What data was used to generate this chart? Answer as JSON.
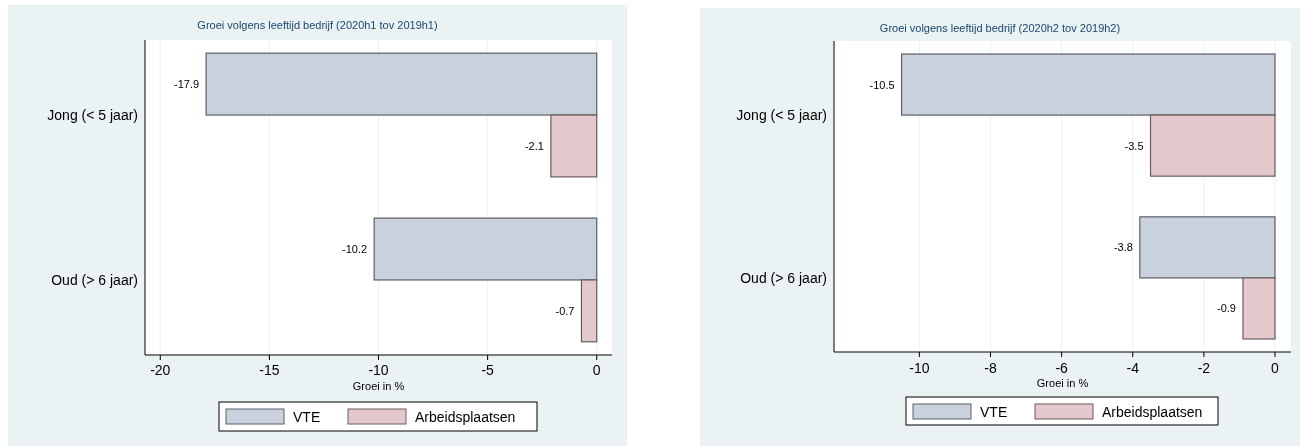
{
  "chart_data": [
    {
      "type": "bar",
      "orientation": "horizontal",
      "title": "Groei volgens leeftijd bedrijf (2020h1 tov 2019h1)",
      "xlabel": "Groei in %",
      "categories": [
        "Jong (< 5 jaar)",
        "Oud (> 6 jaar)"
      ],
      "series": [
        {
          "name": "VTE",
          "color": "#c8d1dc",
          "values": [
            -17.9,
            -10.2
          ]
        },
        {
          "name": "Arbeidsplaatsen",
          "color": "#e3c9cc",
          "values": [
            -2.1,
            -0.7
          ]
        }
      ],
      "xlim": [
        -20.7,
        0.7
      ],
      "xticks": [
        -20,
        -15,
        -10,
        -5,
        0
      ],
      "grid": "x",
      "legend": "bottom",
      "data_labels": true
    },
    {
      "type": "bar",
      "orientation": "horizontal",
      "title": "Groei volgens leeftijd bedrijf (2020h2 tov 2019h2)",
      "xlabel": "Groei in %",
      "categories": [
        "Jong (< 5 jaar)",
        "Oud (> 6 jaar)"
      ],
      "series": [
        {
          "name": "VTE",
          "color": "#c8d1dc",
          "values": [
            -10.5,
            -3.8
          ]
        },
        {
          "name": "Arbeidsplaatsen",
          "color": "#e3c9cc",
          "values": [
            -3.5,
            -0.9
          ]
        }
      ],
      "xlim": [
        -12.4,
        0.45
      ],
      "xticks": [
        -10,
        -8,
        -6,
        -4,
        -2,
        0
      ],
      "grid": "x",
      "legend": "bottom",
      "data_labels": true
    }
  ]
}
